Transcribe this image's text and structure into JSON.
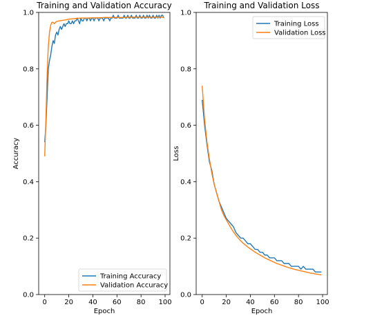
{
  "chart_data": [
    {
      "type": "line",
      "title": "Training and Validation Accuracy",
      "xlabel": "Epoch",
      "ylabel": "Accuracy",
      "xlim": [
        -5,
        104
      ],
      "ylim": [
        0.0,
        1.0
      ],
      "xticks": [
        0,
        20,
        40,
        60,
        80,
        100
      ],
      "yticks": [
        0.0,
        0.2,
        0.4,
        0.6,
        0.8,
        1.0
      ],
      "xtick_labels": [
        "0",
        "20",
        "40",
        "60",
        "80",
        "100"
      ],
      "ytick_labels": [
        "0.0",
        "0.2",
        "0.4",
        "0.6",
        "0.8",
        "1.0"
      ],
      "grid": false,
      "legend": "lower-right",
      "series": [
        {
          "name": "Training Accuracy",
          "color": "#1f77b4",
          "x": [
            0,
            1,
            2,
            3,
            4,
            5,
            6,
            7,
            8,
            9,
            10,
            11,
            12,
            13,
            14,
            15,
            16,
            17,
            18,
            19,
            20,
            21,
            22,
            23,
            24,
            25,
            26,
            27,
            28,
            29,
            30,
            31,
            32,
            33,
            34,
            35,
            36,
            37,
            38,
            39,
            40,
            41,
            42,
            43,
            44,
            45,
            46,
            47,
            48,
            49,
            50,
            51,
            52,
            53,
            54,
            55,
            56,
            57,
            58,
            59,
            60,
            61,
            62,
            63,
            64,
            65,
            66,
            67,
            68,
            69,
            70,
            71,
            72,
            73,
            74,
            75,
            76,
            77,
            78,
            79,
            80,
            81,
            82,
            83,
            84,
            85,
            86,
            87,
            88,
            89,
            90,
            91,
            92,
            93,
            94,
            95,
            96,
            97,
            98,
            99
          ],
          "y": [
            0.54,
            0.6,
            0.7,
            0.8,
            0.83,
            0.85,
            0.88,
            0.9,
            0.89,
            0.92,
            0.93,
            0.92,
            0.94,
            0.95,
            0.94,
            0.95,
            0.96,
            0.95,
            0.96,
            0.96,
            0.97,
            0.96,
            0.96,
            0.97,
            0.96,
            0.97,
            0.97,
            0.98,
            0.97,
            0.96,
            0.98,
            0.97,
            0.97,
            0.98,
            0.98,
            0.97,
            0.98,
            0.98,
            0.97,
            0.98,
            0.98,
            0.97,
            0.98,
            0.98,
            0.98,
            0.97,
            0.98,
            0.98,
            0.98,
            0.97,
            0.98,
            0.98,
            0.98,
            0.98,
            0.97,
            0.98,
            0.98,
            0.99,
            0.98,
            0.98,
            0.98,
            0.99,
            0.98,
            0.98,
            0.98,
            0.98,
            0.99,
            0.98,
            0.98,
            0.99,
            0.98,
            0.98,
            0.99,
            0.98,
            0.98,
            0.98,
            0.99,
            0.98,
            0.98,
            0.99,
            0.98,
            0.98,
            0.99,
            0.98,
            0.98,
            0.99,
            0.98,
            0.99,
            0.98,
            0.98,
            0.99,
            0.98,
            0.98,
            0.99,
            0.98,
            0.99,
            0.98,
            0.99,
            0.99,
            0.98
          ]
        },
        {
          "name": "Validation Accuracy",
          "color": "#ff7f0e",
          "x": [
            0,
            1,
            2,
            3,
            4,
            5,
            6,
            7,
            8,
            9,
            10,
            12,
            15,
            18,
            20,
            25,
            30,
            35,
            40,
            45,
            50,
            55,
            60,
            65,
            70,
            75,
            80,
            85,
            90,
            95,
            99
          ],
          "y": [
            0.49,
            0.62,
            0.78,
            0.88,
            0.93,
            0.955,
            0.965,
            0.965,
            0.96,
            0.965,
            0.968,
            0.97,
            0.972,
            0.974,
            0.976,
            0.978,
            0.98,
            0.98,
            0.981,
            0.981,
            0.982,
            0.982,
            0.982,
            0.982,
            0.983,
            0.983,
            0.983,
            0.983,
            0.983,
            0.983,
            0.983
          ]
        }
      ]
    },
    {
      "type": "line",
      "title": "Training and Validation Loss",
      "xlabel": "Epoch",
      "ylabel": "Loss",
      "xlim": [
        -5,
        104
      ],
      "ylim": [
        0.0,
        1.0
      ],
      "xticks": [
        0,
        20,
        40,
        60,
        80,
        100
      ],
      "yticks": [
        0.0,
        0.2,
        0.4,
        0.6,
        0.8,
        1.0
      ],
      "xtick_labels": [
        "0",
        "20",
        "40",
        "60",
        "80",
        "100"
      ],
      "ytick_labels": [
        "0.0",
        "0.2",
        "0.4",
        "0.6",
        "0.8",
        "1.0"
      ],
      "grid": false,
      "legend": "upper-right",
      "series": [
        {
          "name": "Training Loss",
          "color": "#1f77b4",
          "x": [
            0,
            2,
            4,
            6,
            8,
            10,
            12,
            14,
            16,
            18,
            20,
            22,
            24,
            26,
            28,
            30,
            32,
            34,
            36,
            38,
            40,
            42,
            44,
            46,
            48,
            50,
            52,
            54,
            56,
            58,
            60,
            62,
            64,
            66,
            68,
            70,
            72,
            74,
            76,
            78,
            80,
            82,
            84,
            86,
            88,
            90,
            92,
            94,
            96,
            98,
            99
          ],
          "y": [
            0.69,
            0.6,
            0.53,
            0.47,
            0.44,
            0.39,
            0.36,
            0.33,
            0.31,
            0.29,
            0.27,
            0.26,
            0.25,
            0.24,
            0.22,
            0.21,
            0.2,
            0.2,
            0.19,
            0.18,
            0.18,
            0.17,
            0.16,
            0.16,
            0.15,
            0.15,
            0.14,
            0.14,
            0.13,
            0.13,
            0.13,
            0.12,
            0.12,
            0.12,
            0.11,
            0.11,
            0.11,
            0.1,
            0.1,
            0.1,
            0.1,
            0.09,
            0.1,
            0.09,
            0.09,
            0.09,
            0.09,
            0.08,
            0.08,
            0.08,
            0.08
          ]
        },
        {
          "name": "Validation Loss",
          "color": "#ff7f0e",
          "x": [
            0,
            2,
            4,
            6,
            8,
            10,
            12,
            14,
            16,
            18,
            20,
            22,
            24,
            26,
            28,
            30,
            32,
            34,
            36,
            38,
            40,
            42,
            44,
            46,
            48,
            50,
            52,
            54,
            56,
            58,
            60,
            62,
            64,
            66,
            68,
            70,
            72,
            74,
            76,
            78,
            80,
            82,
            84,
            86,
            88,
            90,
            92,
            94,
            96,
            98,
            99
          ],
          "y": [
            0.74,
            0.62,
            0.54,
            0.48,
            0.43,
            0.39,
            0.36,
            0.33,
            0.3,
            0.28,
            0.265,
            0.25,
            0.235,
            0.222,
            0.21,
            0.2,
            0.19,
            0.182,
            0.175,
            0.168,
            0.162,
            0.156,
            0.15,
            0.145,
            0.14,
            0.135,
            0.13,
            0.126,
            0.122,
            0.118,
            0.114,
            0.11,
            0.107,
            0.104,
            0.101,
            0.098,
            0.095,
            0.093,
            0.09,
            0.088,
            0.086,
            0.084,
            0.082,
            0.08,
            0.078,
            0.076,
            0.075,
            0.073,
            0.072,
            0.07,
            0.07
          ]
        }
      ]
    }
  ]
}
